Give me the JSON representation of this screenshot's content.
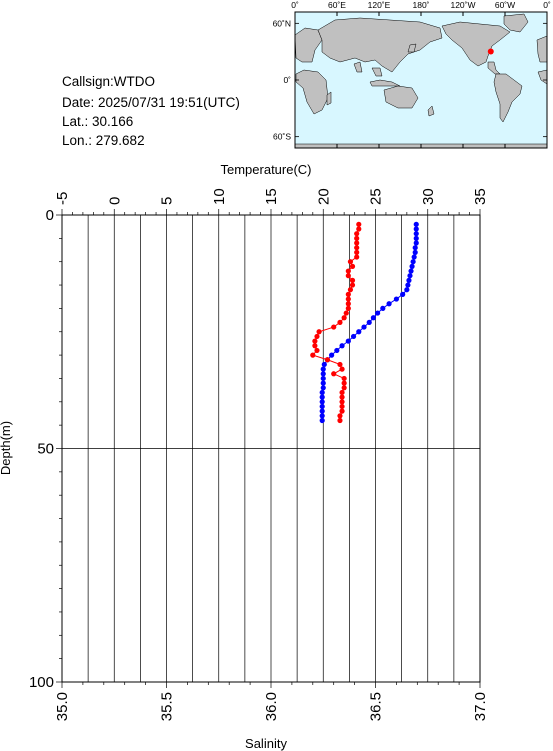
{
  "station": {
    "callsign_line": "Callsign:WTDO",
    "date_line": "Date:  2025/07/31 19:51(UTC)",
    "lat_line": "Lat.:   30.166",
    "lon_line": "Lon.:  279.682"
  },
  "map": {
    "lon_labels": [
      "0˚",
      "60˚E",
      "120˚E",
      "180˚",
      "120˚W",
      "60˚W",
      "0˚"
    ],
    "lat_labels": [
      "60˚N",
      "0˚",
      "60˚S"
    ],
    "colors": {
      "ocean": "#d8f7ff",
      "land": "#c0c0c0",
      "marker": "#ff0000"
    },
    "marker": {
      "lat": 30.166,
      "lon": 279.682
    }
  },
  "chart_data": {
    "type": "scatter",
    "title": "",
    "ylabel": "Depth(m)",
    "ylim": [
      100,
      0
    ],
    "yticks": [
      "0",
      "50",
      "100"
    ],
    "y_tick_values": [
      0,
      50,
      100
    ],
    "top_axis": {
      "label": "Temperature(C)",
      "range": [
        -5,
        35
      ],
      "ticks": [
        "-5",
        "0",
        "5",
        "10",
        "15",
        "20",
        "25",
        "30",
        "35"
      ],
      "tick_values": [
        -5,
        0,
        5,
        10,
        15,
        20,
        25,
        30,
        35
      ]
    },
    "bottom_axis": {
      "label": "Salinity",
      "range": [
        35.0,
        37.0
      ],
      "ticks": [
        "35.0",
        "35.5",
        "36.0",
        "36.5",
        "37.0"
      ],
      "tick_values": [
        35.0,
        35.5,
        36.0,
        36.5,
        37.0
      ]
    },
    "grid": true,
    "series": [
      {
        "color": "#0000ff",
        "axis": "top",
        "points": [
          [
            28.9,
            2
          ],
          [
            28.9,
            3
          ],
          [
            28.9,
            4
          ],
          [
            28.9,
            5
          ],
          [
            28.9,
            6
          ],
          [
            28.8,
            7
          ],
          [
            28.8,
            8
          ],
          [
            28.7,
            9
          ],
          [
            28.6,
            10
          ],
          [
            28.5,
            11
          ],
          [
            28.4,
            12
          ],
          [
            28.3,
            13
          ],
          [
            28.2,
            14
          ],
          [
            28.1,
            15
          ],
          [
            28.0,
            16
          ],
          [
            27.6,
            17
          ],
          [
            27.0,
            18
          ],
          [
            26.3,
            19
          ],
          [
            25.7,
            20
          ],
          [
            25.2,
            21
          ],
          [
            24.8,
            22
          ],
          [
            24.4,
            23
          ],
          [
            23.9,
            24
          ],
          [
            23.4,
            25
          ],
          [
            22.9,
            26
          ],
          [
            22.4,
            27
          ],
          [
            21.8,
            28
          ],
          [
            21.3,
            29
          ],
          [
            20.8,
            30
          ],
          [
            20.4,
            31
          ],
          [
            20.1,
            32
          ],
          [
            20.0,
            33
          ],
          [
            20.0,
            34
          ],
          [
            20.0,
            35
          ],
          [
            20.0,
            36
          ],
          [
            20.0,
            37
          ],
          [
            19.9,
            38
          ],
          [
            19.9,
            39
          ],
          [
            19.9,
            40
          ],
          [
            19.9,
            41
          ],
          [
            19.9,
            42
          ],
          [
            19.9,
            43
          ],
          [
            19.9,
            44
          ]
        ]
      },
      {
        "color": "#ff0000",
        "axis": "bottom",
        "points": [
          [
            36.42,
            2
          ],
          [
            36.42,
            3
          ],
          [
            36.41,
            4
          ],
          [
            36.41,
            5
          ],
          [
            36.41,
            6
          ],
          [
            36.41,
            7
          ],
          [
            36.41,
            8
          ],
          [
            36.41,
            9
          ],
          [
            36.38,
            10
          ],
          [
            36.39,
            11
          ],
          [
            36.37,
            12
          ],
          [
            36.37,
            13
          ],
          [
            36.39,
            14
          ],
          [
            36.39,
            15
          ],
          [
            36.38,
            16
          ],
          [
            36.37,
            17
          ],
          [
            36.37,
            18
          ],
          [
            36.37,
            19
          ],
          [
            36.37,
            20
          ],
          [
            36.36,
            21
          ],
          [
            36.35,
            22
          ],
          [
            36.33,
            23
          ],
          [
            36.3,
            24
          ],
          [
            36.23,
            25
          ],
          [
            36.22,
            26
          ],
          [
            36.21,
            27
          ],
          [
            36.21,
            28
          ],
          [
            36.22,
            29
          ],
          [
            36.2,
            30
          ],
          [
            36.27,
            31
          ],
          [
            36.33,
            32
          ],
          [
            36.34,
            33
          ],
          [
            36.3,
            34
          ],
          [
            36.35,
            35
          ],
          [
            36.35,
            36
          ],
          [
            36.35,
            37
          ],
          [
            36.34,
            38
          ],
          [
            36.34,
            39
          ],
          [
            36.34,
            40
          ],
          [
            36.34,
            41
          ],
          [
            36.34,
            42
          ],
          [
            36.33,
            43
          ],
          [
            36.33,
            44
          ]
        ]
      }
    ]
  }
}
